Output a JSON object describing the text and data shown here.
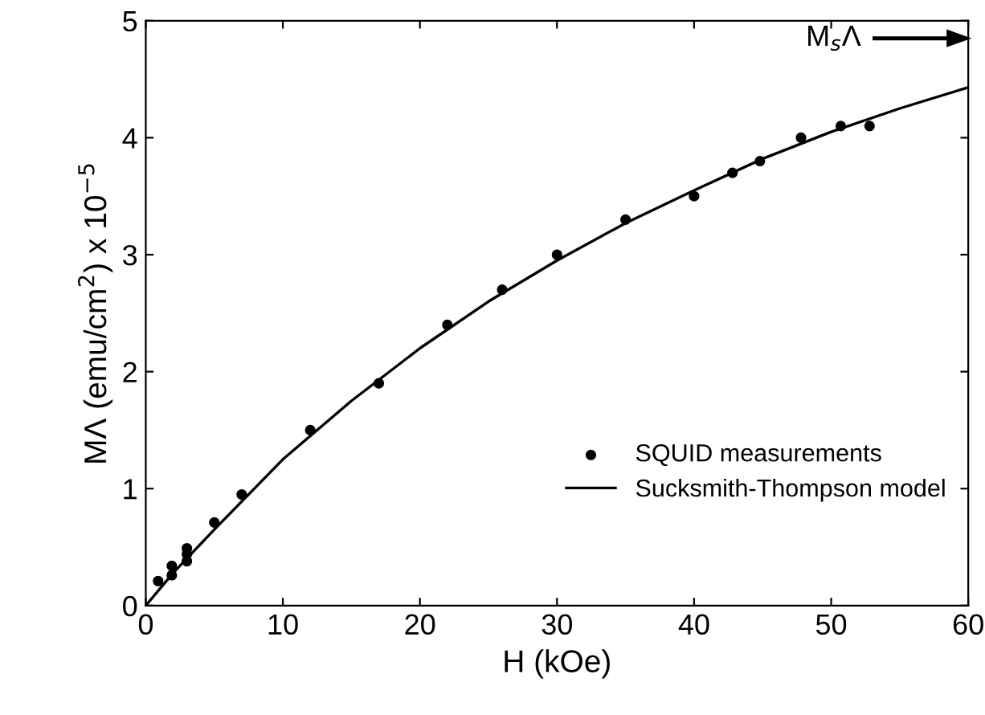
{
  "chart_data": {
    "type": "scatter",
    "xlabel": "H (kOe)",
    "ylabel": "MΛ (emu/cm$^{2}$) x 10$^{−5}$",
    "xlim": [
      0,
      60
    ],
    "xticks": [
      0,
      10,
      20,
      30,
      40,
      50,
      60
    ],
    "ylim": [
      0,
      5
    ],
    "yticks": [
      0,
      1,
      2,
      3,
      4,
      5
    ],
    "grid": false,
    "legend": "lower right",
    "series": [
      {
        "name": "SQUID measurements",
        "marker": "circle",
        "color": "#000000",
        "x": [
          0.9,
          1.9,
          1.9,
          3.0,
          3.0,
          3.0,
          5.0,
          7.0,
          12,
          17,
          22,
          26,
          30,
          35,
          40,
          42.8,
          44.8,
          47.8,
          50.7,
          52.8
        ],
        "values": [
          0.21,
          0.26,
          0.34,
          0.38,
          0.44,
          0.49,
          0.71,
          0.95,
          1.5,
          1.9,
          2.4,
          2.7,
          3.0,
          3.3,
          3.5,
          3.7,
          3.8,
          4.0,
          4.1,
          4.1
        ]
      },
      {
        "name": "Sucksmith-Thompson model",
        "type": "line",
        "marker": "none",
        "line_style": "solid",
        "color": "#000000",
        "x": [
          0,
          2,
          5,
          10,
          15,
          20,
          25,
          30,
          35,
          40,
          45,
          50,
          55,
          60
        ],
        "values": [
          0,
          0.28,
          0.65,
          1.25,
          1.75,
          2.2,
          2.6,
          2.95,
          3.27,
          3.55,
          3.82,
          4.05,
          4.25,
          4.43
        ]
      }
    ],
    "annotations": [
      "M$_{s}$Λ"
    ]
  }
}
